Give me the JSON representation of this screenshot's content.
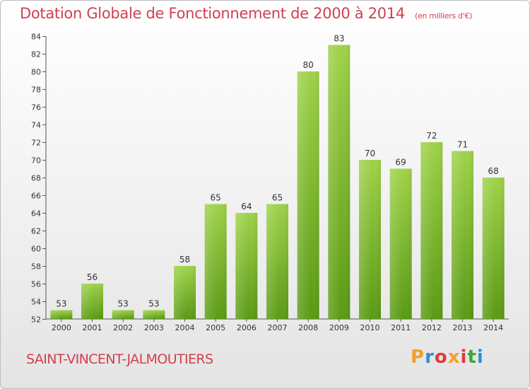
{
  "header": {
    "title": "Dotation Globale de Fonctionnement de 2000 à 2014",
    "unit": "(en milliers d'€)"
  },
  "footer": {
    "commune": "SAINT-VINCENT-JALMOUTIERS",
    "logo": "Proxiti",
    "logo_colors": [
      "#f0a030",
      "#2e8fd0",
      "#e03b3b",
      "#f0a030",
      "#e03b3b",
      "#3aaa35",
      "#2e8fd0"
    ]
  },
  "chart_data": {
    "type": "bar",
    "title": "Dotation Globale de Fonctionnement de 2000 à 2014",
    "subtitle": "(en milliers d'€)",
    "categories": [
      "2000",
      "2001",
      "2002",
      "2003",
      "2004",
      "2005",
      "2006",
      "2007",
      "2008",
      "2009",
      "2010",
      "2011",
      "2012",
      "2013",
      "2014"
    ],
    "values": [
      53,
      56,
      53,
      53,
      58,
      65,
      64,
      65,
      80,
      83,
      70,
      69,
      72,
      71,
      68
    ],
    "ylim": [
      52,
      84
    ],
    "yticks": [
      52,
      54,
      56,
      58,
      60,
      62,
      64,
      66,
      68,
      70,
      72,
      74,
      76,
      78,
      80,
      82,
      84
    ],
    "grid": false,
    "bar_color_top": "#9fd24a",
    "bar_color_bottom": "#5a9a14"
  }
}
